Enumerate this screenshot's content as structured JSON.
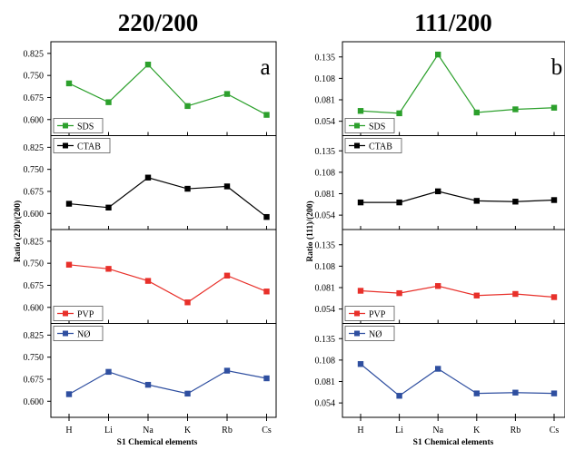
{
  "figure": {
    "categories_label": "S1 Chemical elements"
  },
  "chart_data": [
    {
      "type": "line",
      "title": "220/200",
      "panel_letter": "a",
      "ylabel": "Ratio (220)/(200)",
      "xlabel": "S1 Chemical elements",
      "categories": [
        "H",
        "Li",
        "Na",
        "K",
        "Rb",
        "Cs"
      ],
      "yticks": [
        "0.600",
        "0.675",
        "0.750",
        "0.825"
      ],
      "ylim": [
        0.57,
        0.84
      ],
      "grid": false,
      "series": [
        {
          "name": "SDS",
          "color": "#2ca02c",
          "values": [
            0.723,
            0.659,
            0.787,
            0.646,
            0.687,
            0.616
          ]
        },
        {
          "name": "CTAB",
          "color": "#000000",
          "values": [
            0.633,
            0.62,
            0.722,
            0.684,
            0.692,
            0.588
          ]
        },
        {
          "name": "PVP",
          "color": "#e8302a",
          "values": [
            0.745,
            0.731,
            0.69,
            0.617,
            0.708,
            0.654
          ]
        },
        {
          "name": "NØ",
          "color": "#2f4fa0",
          "values": [
            0.624,
            0.7,
            0.656,
            0.626,
            0.704,
            0.678
          ]
        }
      ],
      "legend_positions": [
        "bottom-left",
        "top-left",
        "bottom-left",
        "top-left"
      ]
    },
    {
      "type": "line",
      "title": "111/200",
      "panel_letter": "b",
      "ylabel": "Ratio (111)/(200)",
      "xlabel": "S1 Chemical elements",
      "categories": [
        "H",
        "Li",
        "Na",
        "K",
        "Rb",
        "Cs"
      ],
      "yticks": [
        "0.054",
        "0.081",
        "0.108",
        "0.135"
      ],
      "ylim": [
        0.045,
        0.145
      ],
      "grid": false,
      "series": [
        {
          "name": "SDS",
          "color": "#2ca02c",
          "values": [
            0.067,
            0.064,
            0.138,
            0.065,
            0.069,
            0.071
          ]
        },
        {
          "name": "CTAB",
          "color": "#000000",
          "values": [
            0.07,
            0.07,
            0.084,
            0.072,
            0.071,
            0.073
          ]
        },
        {
          "name": "PVP",
          "color": "#e8302a",
          "values": [
            0.077,
            0.074,
            0.083,
            0.071,
            0.073,
            0.069
          ]
        },
        {
          "name": "NØ",
          "color": "#2f4fa0",
          "values": [
            0.103,
            0.063,
            0.097,
            0.066,
            0.067,
            0.066
          ]
        }
      ],
      "legend_positions": [
        "bottom-left",
        "top-left",
        "bottom-left",
        "top-left"
      ]
    }
  ]
}
